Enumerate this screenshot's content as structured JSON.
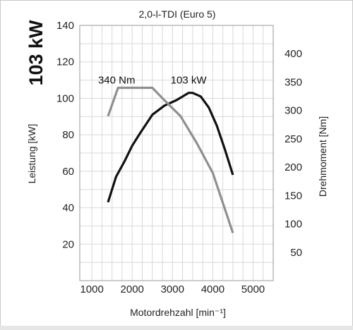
{
  "chart_data": {
    "type": "line",
    "big_title": "103 kW",
    "title": "2,0-l-TDI (Euro 5)",
    "xlabel": "Motordrehzahl [min⁻¹]",
    "ylabel_left": "Leistung [kW]",
    "ylabel_right": "Drehmoment [Nm]",
    "xlim": [
      700,
      5500
    ],
    "ylim_left": [
      0,
      140
    ],
    "ylim_right": [
      0,
      450
    ],
    "x_ticks": [
      "1000",
      "2000",
      "3000",
      "4000",
      "5000"
    ],
    "y_ticks_left": [
      "20",
      "40",
      "60",
      "80",
      "100",
      "120",
      "140"
    ],
    "y_ticks_right": [
      "50",
      "100",
      "150",
      "200",
      "250",
      "300",
      "350",
      "400"
    ],
    "grid": true,
    "annotations": [
      {
        "text": "103 kW",
        "series": "power"
      },
      {
        "text": "340 Nm",
        "series": "torque"
      }
    ],
    "series": [
      {
        "id": "power",
        "axis": "left",
        "color": "#111111",
        "x": [
          1400,
          1600,
          1800,
          2000,
          2200,
          2500,
          2800,
          3100,
          3400,
          3500,
          3700,
          3900,
          4100,
          4300,
          4500
        ],
        "y": [
          43,
          57,
          65,
          74,
          81,
          91,
          96,
          99,
          103,
          103,
          101,
          95,
          85,
          72,
          58
        ]
      },
      {
        "id": "torque",
        "axis": "right",
        "color": "#8f8f8f",
        "x": [
          1400,
          1650,
          2000,
          2500,
          2800,
          3200,
          3600,
          4000,
          4500
        ],
        "y": [
          290,
          340,
          340,
          340,
          318,
          290,
          243,
          190,
          84
        ]
      }
    ]
  }
}
